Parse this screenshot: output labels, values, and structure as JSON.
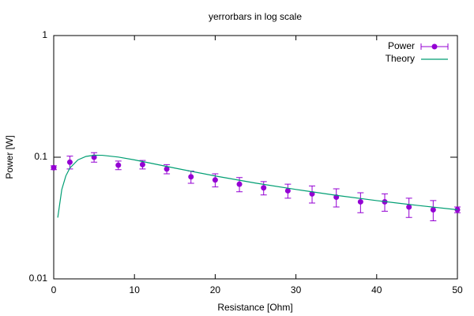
{
  "chart_data": {
    "type": "errorbar",
    "title": "yerrorbars in log scale",
    "x_label": "Resistance [Ohm]",
    "y_label": "Power [W]",
    "xlim": [
      0,
      50
    ],
    "ylim": [
      0.01,
      1
    ],
    "xticks": [
      0,
      10,
      20,
      30,
      40,
      50
    ],
    "yticks": [
      0.01,
      0.1,
      1
    ],
    "y_log": true,
    "legend": "top-right",
    "series": [
      {
        "name": "Power",
        "color": "#9400d3",
        "kind": "points",
        "x": [
          0,
          2,
          5,
          8,
          11,
          14,
          17,
          20,
          23,
          26,
          29,
          32,
          35,
          38,
          41,
          44,
          47,
          50
        ],
        "values": [
          0.082,
          0.091,
          0.1,
          0.086,
          0.087,
          0.08,
          0.069,
          0.065,
          0.06,
          0.056,
          0.053,
          0.05,
          0.047,
          0.043,
          0.043,
          0.039,
          0.037,
          0.037
        ],
        "errors": [
          0.003,
          0.011,
          0.009,
          0.007,
          0.007,
          0.007,
          0.008,
          0.008,
          0.008,
          0.007,
          0.007,
          0.008,
          0.008,
          0.008,
          0.007,
          0.007,
          0.007,
          0.002
        ]
      },
      {
        "name": "Theory",
        "color": "#009e73",
        "kind": "line",
        "x": [
          0.5,
          1,
          1.5,
          2,
          3,
          4,
          5,
          6,
          8,
          10,
          15,
          20,
          25,
          30,
          35,
          40,
          45,
          50
        ],
        "values": [
          0.0319,
          0.0543,
          0.0702,
          0.0815,
          0.0951,
          0.1015,
          0.1038,
          0.1037,
          0.1003,
          0.0951,
          0.0814,
          0.0701,
          0.0613,
          0.0543,
          0.0486,
          0.044,
          0.0402,
          0.037
        ]
      }
    ]
  }
}
